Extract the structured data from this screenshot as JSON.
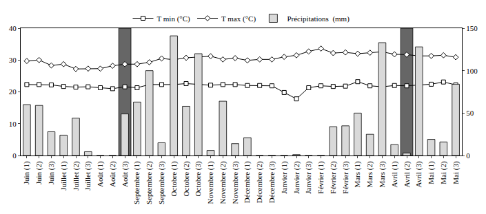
{
  "chart_data": {
    "type": "bar",
    "categories": [
      "Juin (1)",
      "Juin (2)",
      "Juin (3)",
      "Juillet (1)",
      "Juillet (2)",
      "Juillet (3)",
      "Août (1)",
      "Août (2)",
      "Août (3)",
      "Septembre (1)",
      "Septembre (2)",
      "Septembre (3)",
      "Octobre (1)",
      "Octobre (2)",
      "Octobre (3)",
      "Novembre (1)",
      "Novembre (2)",
      "Novembre (3)",
      "Décembre (1)",
      "Décembre (2)",
      "Décembre (3)",
      "Janvier (1)",
      "Janvier (2)",
      "Janvier (3)",
      "Février (1)",
      "Février (2)",
      "Février (3)",
      "Mars (1)",
      "Mars (2)",
      "Mars (3)",
      "Avril (1)",
      "Avril (2)",
      "Avril (3)",
      "Mai (1)",
      "Mai (2)",
      "Mai (3)"
    ],
    "series": [
      {
        "name": "T min (°C)",
        "type": "line",
        "axis": "y",
        "color": "#000000",
        "marker": "square",
        "line_style": "solid",
        "values": [
          22.3,
          22.3,
          22.2,
          21.7,
          21.5,
          21.6,
          21.3,
          21.0,
          21.6,
          21.3,
          22.3,
          22.3,
          22.3,
          22.6,
          22.3,
          22.1,
          22.3,
          22.3,
          22.0,
          22.0,
          21.9,
          19.8,
          17.8,
          21.3,
          21.9,
          21.7,
          21.8,
          23.2,
          21.9,
          21.6,
          22.0,
          21.9,
          22.2,
          22.4,
          23.1,
          22.2
        ]
      },
      {
        "name": "T max (°C)",
        "type": "line",
        "axis": "y",
        "color": "#000000",
        "marker": "diamond",
        "line_style": "solid",
        "values": [
          29.7,
          30.0,
          28.3,
          28.7,
          27.2,
          27.3,
          27.3,
          28.2,
          28.7,
          28.7,
          29.3,
          30.5,
          30.1,
          30.7,
          31.0,
          31.2,
          30.2,
          30.6,
          29.9,
          30.2,
          30.2,
          31.0,
          31.5,
          32.7,
          33.6,
          32.2,
          32.4,
          32.0,
          32.3,
          32.6,
          31.8,
          31.7,
          31.3,
          31.3,
          31.5,
          30.9
        ]
      },
      {
        "name": "Précipitations  (mm)",
        "type": "bar",
        "axis": "y2",
        "color": "#d9d9d9",
        "values": [
          60,
          59,
          28,
          24,
          44,
          4.5,
          0,
          0,
          49,
          63,
          100,
          15,
          141,
          58,
          120,
          6,
          64,
          14,
          21,
          0,
          0,
          0,
          1,
          0,
          0,
          34,
          35,
          50,
          25,
          133,
          13,
          3,
          128,
          19,
          16,
          84
        ]
      }
    ],
    "highlight": [
      "Août (3)",
      "Avril (2)"
    ],
    "ylim": [
      0,
      40
    ],
    "yticks": [
      0,
      10,
      20,
      30,
      40
    ],
    "y2lim": [
      0,
      150
    ],
    "y2ticks": [
      0,
      50,
      100,
      150
    ],
    "grid": false,
    "legend": "top"
  }
}
